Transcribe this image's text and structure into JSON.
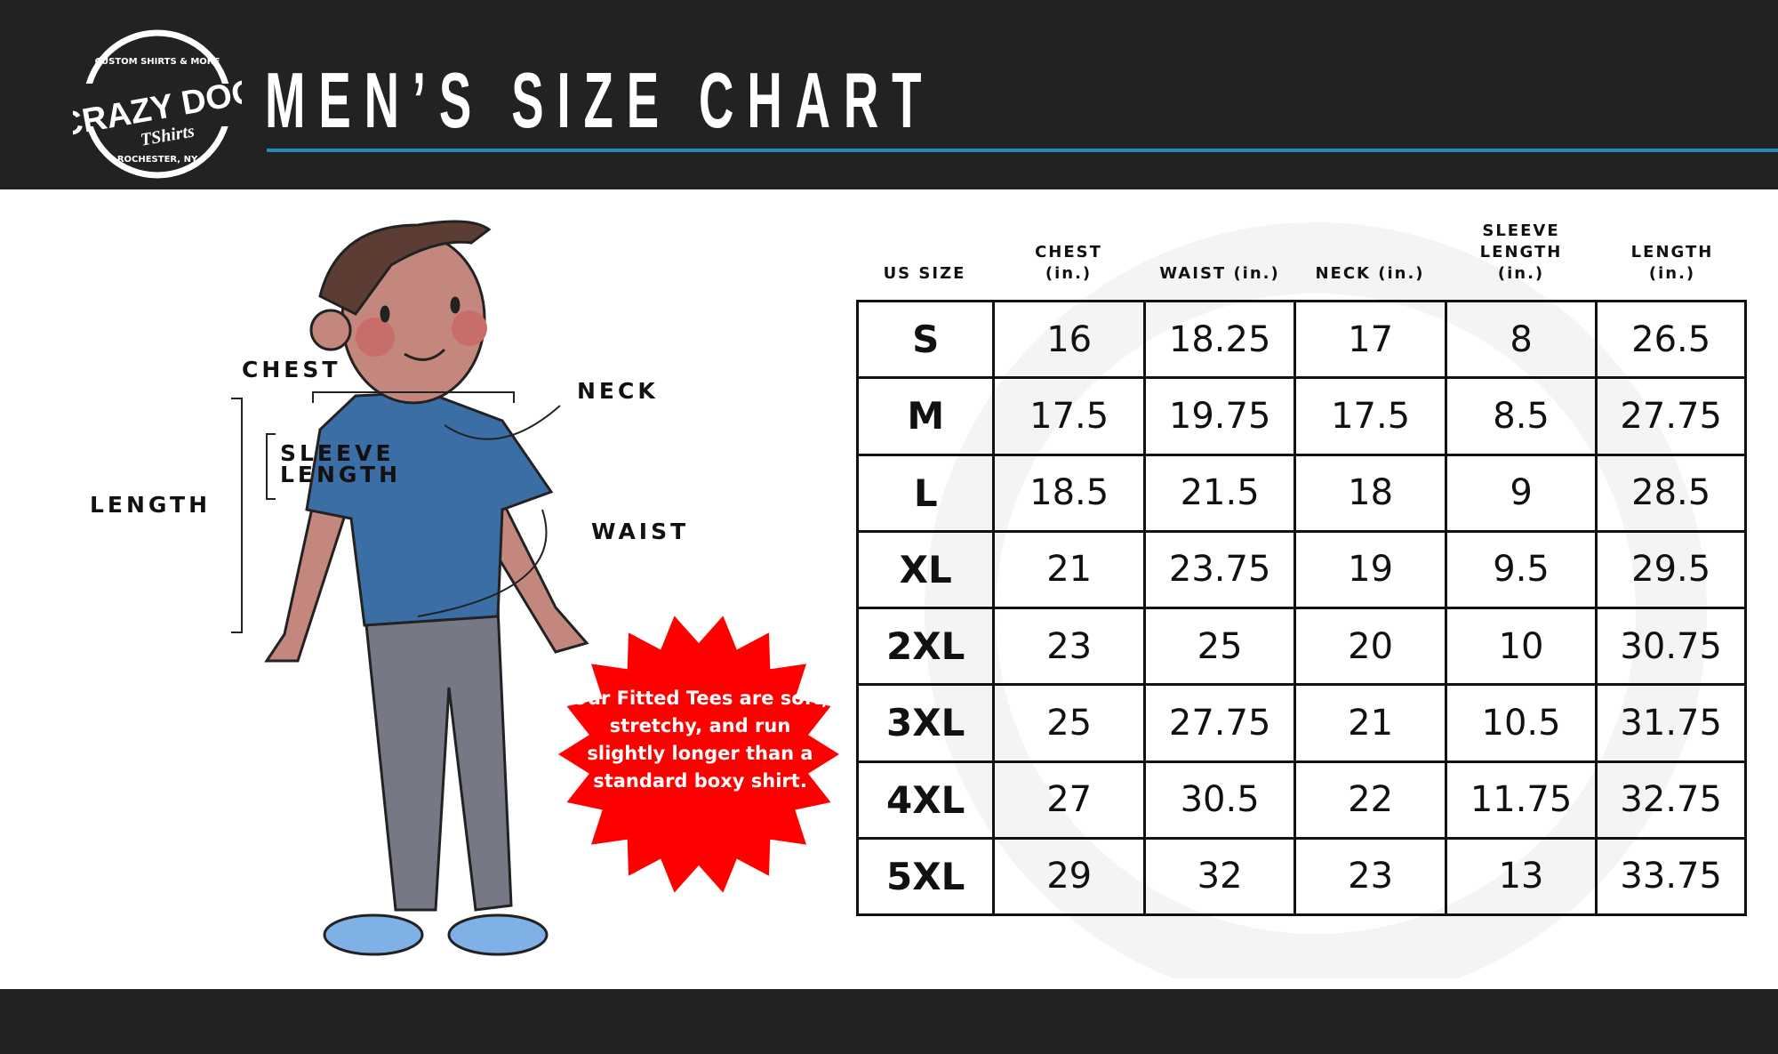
{
  "header": {
    "title": "MEN’S SIZE CHART",
    "accent_color": "#1f8ac0",
    "background": "#222222"
  },
  "logo": {
    "brand": "CRAZY DOG",
    "sub": "TShirts",
    "top_arc": "CUSTOM SHIRTS & MORE",
    "bottom_arc": "ROCHESTER, NY"
  },
  "figure": {
    "labels": {
      "chest": "CHEST",
      "neck": "NECK",
      "sleeve_length": "SLEEVE LENGTH",
      "length": "LENGTH",
      "waist": "WAIST"
    }
  },
  "callout": {
    "text": "Our Fitted Tees are soft, stretchy, and run slightly longer than a standard boxy shirt.",
    "color": "#ff0000"
  },
  "table": {
    "headers": [
      [
        "US SIZE"
      ],
      [
        "CHEST",
        "(in.)"
      ],
      [
        "WAIST (in.)"
      ],
      [
        "NECK (in.)"
      ],
      [
        "SLEEVE",
        "LENGTH",
        "(in.)"
      ],
      [
        "LENGTH",
        "(in.)"
      ]
    ],
    "rows": [
      [
        "S",
        "16",
        "18.25",
        "17",
        "8",
        "26.5"
      ],
      [
        "M",
        "17.5",
        "19.75",
        "17.5",
        "8.5",
        "27.75"
      ],
      [
        "L",
        "18.5",
        "21.5",
        "18",
        "9",
        "28.5"
      ],
      [
        "XL",
        "21",
        "23.75",
        "19",
        "9.5",
        "29.5"
      ],
      [
        "2XL",
        "23",
        "25",
        "20",
        "10",
        "30.75"
      ],
      [
        "3XL",
        "25",
        "27.75",
        "21",
        "10.5",
        "31.75"
      ],
      [
        "4XL",
        "27",
        "30.5",
        "22",
        "11.75",
        "32.75"
      ],
      [
        "5XL",
        "29",
        "32",
        "23",
        "13",
        "33.75"
      ]
    ]
  }
}
